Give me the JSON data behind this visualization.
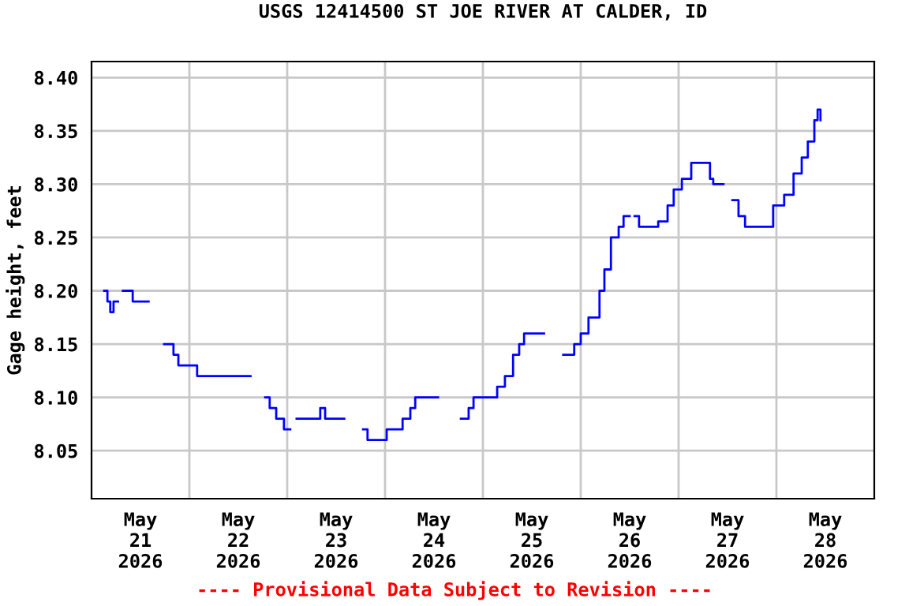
{
  "chart_data": {
    "type": "step",
    "title": "USGS 12414500 ST JOE RIVER AT CALDER, ID",
    "ylabel": "Gage height, feet",
    "annotations": [
      "---- Provisional Data Subject to Revision ----"
    ],
    "x": [
      "2026-05-21T03:06",
      "2026-05-21T03:54",
      "2026-05-21T04:36",
      "2026-05-21T05:24",
      "2026-05-21T06:30",
      "2026-05-21T07:42",
      "2026-05-21T09:18",
      "2026-05-21T10:06",
      "2026-05-21T14:00",
      "2026-05-21T17:48",
      "2026-05-21T19:00",
      "2026-05-21T20:06",
      "2026-05-21T21:18",
      "2026-05-22T00:00",
      "2026-05-22T01:54",
      "2026-05-22T05:48",
      "2026-05-22T10:30",
      "2026-05-22T15:00",
      "2026-05-22T18:36",
      "2026-05-22T19:42",
      "2026-05-22T21:18",
      "2026-05-22T23:12",
      "2026-05-23T00:45",
      "2026-05-23T02:18",
      "2026-05-23T06:12",
      "2026-05-23T08:06",
      "2026-05-23T09:18",
      "2026-05-23T14:00",
      "2026-05-23T18:36",
      "2026-05-23T19:42",
      "2026-05-23T22:30",
      "2026-05-24T00:24",
      "2026-05-24T02:18",
      "2026-05-24T04:18",
      "2026-05-24T06:12",
      "2026-05-24T07:24",
      "2026-05-24T13:00",
      "2026-05-24T18:36",
      "2026-05-24T20:30",
      "2026-05-24T21:42",
      "2026-05-25T01:30",
      "2026-05-25T03:30",
      "2026-05-25T05:24",
      "2026-05-25T07:24",
      "2026-05-25T08:54",
      "2026-05-25T10:06",
      "2026-05-25T15:00",
      "2026-05-25T19:42",
      "2026-05-25T22:24",
      "2026-05-26T00:00",
      "2026-05-26T01:54",
      "2026-05-26T04:36",
      "2026-05-26T05:48",
      "2026-05-26T07:24",
      "2026-05-26T09:18",
      "2026-05-26T10:30",
      "2026-05-26T12:00",
      "2026-05-26T13:12",
      "2026-05-26T14:18",
      "2026-05-26T19:00",
      "2026-05-26T21:18",
      "2026-05-26T22:48",
      "2026-05-27T00:48",
      "2026-05-27T03:06",
      "2026-05-27T06:36",
      "2026-05-27T07:42",
      "2026-05-27T08:30",
      "2026-05-27T11:00",
      "2026-05-27T13:12",
      "2026-05-27T14:42",
      "2026-05-27T16:18",
      "2026-05-27T21:18",
      "2026-05-27T23:12",
      "2026-05-28T01:54",
      "2026-05-28T04:12",
      "2026-05-28T06:12",
      "2026-05-28T07:42",
      "2026-05-28T09:18",
      "2026-05-28T10:06",
      "2026-05-28T10:48"
    ],
    "series": [
      {
        "color": "#0000ff",
        "values": [
          8.2,
          8.19,
          8.18,
          8.19,
          null,
          8.2,
          8.2,
          8.19,
          null,
          8.15,
          8.15,
          8.14,
          8.13,
          8.13,
          8.12,
          8.12,
          8.12,
          null,
          8.1,
          8.09,
          8.08,
          8.07,
          null,
          8.08,
          8.08,
          8.09,
          8.08,
          null,
          8.07,
          8.06,
          8.06,
          8.07,
          8.07,
          8.08,
          8.09,
          8.1,
          null,
          8.08,
          8.09,
          8.1,
          8.1,
          8.11,
          8.12,
          8.14,
          8.15,
          8.16,
          null,
          8.14,
          8.15,
          8.16,
          8.175,
          8.2,
          8.22,
          8.25,
          8.26,
          8.27,
          null,
          8.27,
          8.26,
          8.265,
          8.28,
          8.295,
          8.305,
          8.32,
          8.32,
          8.305,
          8.3,
          null,
          8.285,
          8.27,
          8.26,
          8.26,
          8.28,
          8.29,
          8.31,
          8.325,
          8.34,
          8.36,
          8.37,
          8.36
        ]
      }
    ],
    "xlim": [
      "2026-05-21T00:00",
      "2026-05-29T00:00"
    ],
    "xticks": [
      {
        "value": "2026-05-21T12:00",
        "label": "May\n21\n2026"
      },
      {
        "value": "2026-05-22",
        "label": null
      },
      {
        "value": "2026-05-22T12:00",
        "label": "May\n22\n2026"
      },
      {
        "value": "2026-05-23",
        "label": null
      },
      {
        "value": "2026-05-23T12:00",
        "label": "May\n23\n2026"
      },
      {
        "value": "2026-05-24",
        "label": null
      },
      {
        "value": "2026-05-24T12:00",
        "label": "May\n24\n2026"
      },
      {
        "value": "2026-05-25",
        "label": null
      },
      {
        "value": "2026-05-25T12:00",
        "label": "May\n25\n2026"
      },
      {
        "value": "2026-05-26",
        "label": null
      },
      {
        "value": "2026-05-26T12:00",
        "label": "May\n26\n2026"
      },
      {
        "value": "2026-05-27",
        "label": null
      },
      {
        "value": "2026-05-27T12:00",
        "label": "May\n27\n2026"
      },
      {
        "value": "2026-05-28",
        "label": null
      },
      {
        "value": "2026-05-28T12:00",
        "label": "May\n28\n2026"
      }
    ],
    "ylim": [
      8.005,
      8.415
    ],
    "yticks": [
      {
        "value": 8.05,
        "label": "8.05"
      },
      {
        "value": 8.1,
        "label": "8.10"
      },
      {
        "value": 8.15,
        "label": "8.15"
      },
      {
        "value": 8.2,
        "label": "8.20"
      },
      {
        "value": 8.25,
        "label": "8.25"
      },
      {
        "value": 8.3,
        "label": "8.30"
      },
      {
        "value": 8.35,
        "label": "8.35"
      },
      {
        "value": 8.4,
        "label": "8.40"
      }
    ],
    "grid": true,
    "legend": false
  }
}
